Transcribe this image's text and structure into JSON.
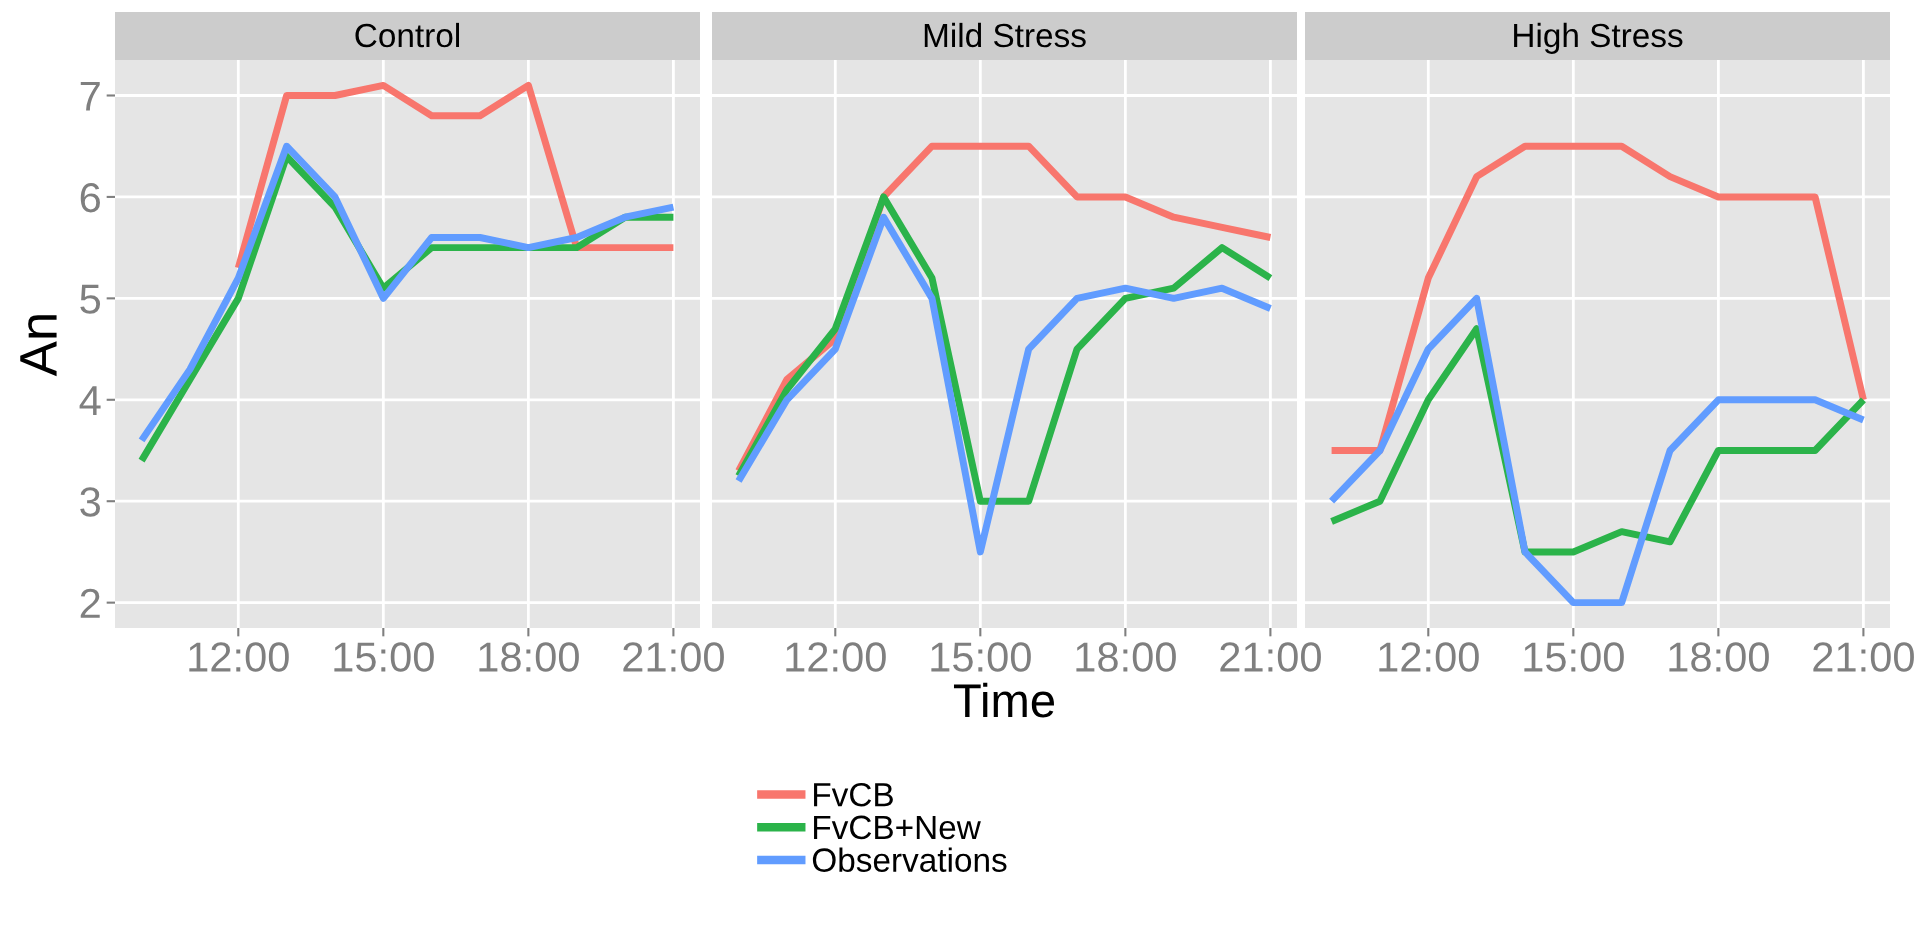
{
  "chart_data": [
    {
      "type": "line",
      "title": "Control",
      "ylabel": "An",
      "legend": "bottom",
      "x": [
        10,
        11,
        12,
        13,
        14,
        15,
        16,
        17,
        18,
        19,
        20,
        21
      ],
      "xlim": [
        9.45,
        21.55
      ],
      "ylim": [
        1.75,
        7.35
      ],
      "xticks": [
        {
          "value": 12,
          "label": "12:00"
        },
        {
          "value": 15,
          "label": "15:00"
        },
        {
          "value": 18,
          "label": "18:00"
        },
        {
          "value": 21,
          "label": "21:00"
        }
      ],
      "yticks": [
        2,
        3,
        4,
        5,
        6,
        7
      ],
      "grid": true,
      "series": [
        {
          "name": "FvCB",
          "color": "#f8766d",
          "values": [
            null,
            null,
            5.3,
            7.0,
            7.0,
            7.1,
            6.8,
            6.8,
            7.1,
            5.5,
            5.5,
            5.5
          ]
        },
        {
          "name": "FvCB+New",
          "color": "#2bb34a",
          "values": [
            3.4,
            4.2,
            5.0,
            6.4,
            5.9,
            5.1,
            5.5,
            5.5,
            5.5,
            5.5,
            5.8,
            5.8
          ]
        },
        {
          "name": "Observations",
          "color": "#619cff",
          "values": [
            3.6,
            4.3,
            5.2,
            6.5,
            6.0,
            5.0,
            5.6,
            5.6,
            5.5,
            5.6,
            5.8,
            5.9
          ]
        }
      ]
    },
    {
      "type": "line",
      "title": "Mild Stress",
      "xlabel": "Time",
      "tick_labels": "x",
      "x": [
        10,
        11,
        12,
        13,
        14,
        15,
        16,
        17,
        18,
        19,
        20,
        21
      ],
      "xlim": [
        9.45,
        21.55
      ],
      "ylim": [
        1.75,
        7.35
      ],
      "xticks": [
        {
          "value": 12,
          "label": "12:00"
        },
        {
          "value": 15,
          "label": "15:00"
        },
        {
          "value": 18,
          "label": "18:00"
        },
        {
          "value": 21,
          "label": "21:00"
        }
      ],
      "yticks": [
        2,
        3,
        4,
        5,
        6,
        7
      ],
      "grid": true,
      "series": [
        {
          "color": "#f8766d",
          "values": [
            3.3,
            4.2,
            4.6,
            6.0,
            6.5,
            6.5,
            6.5,
            6.0,
            6.0,
            5.8,
            5.7,
            5.6
          ]
        },
        {
          "color": "#2bb34a",
          "values": [
            3.25,
            4.1,
            4.7,
            6.0,
            5.2,
            3.0,
            3.0,
            4.5,
            5.0,
            5.1,
            5.5,
            5.2
          ]
        },
        {
          "color": "#619cff",
          "values": [
            3.2,
            4.0,
            4.5,
            5.8,
            5.0,
            2.5,
            4.5,
            5.0,
            5.1,
            5.0,
            5.1,
            4.9
          ]
        }
      ]
    },
    {
      "type": "line",
      "title": "High Stress",
      "tick_labels": "x",
      "x": [
        10,
        11,
        12,
        13,
        14,
        15,
        16,
        17,
        18,
        19,
        20,
        21
      ],
      "xlim": [
        9.45,
        21.55
      ],
      "ylim": [
        1.75,
        7.35
      ],
      "xticks": [
        {
          "value": 12,
          "label": "12:00"
        },
        {
          "value": 15,
          "label": "15:00"
        },
        {
          "value": 18,
          "label": "18:00"
        },
        {
          "value": 21,
          "label": "21:00"
        }
      ],
      "yticks": [
        2,
        3,
        4,
        5,
        6,
        7
      ],
      "grid": true,
      "series": [
        {
          "color": "#f8766d",
          "values": [
            3.5,
            3.5,
            5.2,
            6.2,
            6.5,
            6.5,
            6.5,
            6.2,
            6.0,
            6.0,
            6.0,
            4.0
          ]
        },
        {
          "color": "#2bb34a",
          "values": [
            2.8,
            3.0,
            4.0,
            4.7,
            2.5,
            2.5,
            2.7,
            2.6,
            3.5,
            3.5,
            3.5,
            4.0
          ]
        },
        {
          "color": "#619cff",
          "values": [
            3.0,
            3.5,
            4.5,
            5.0,
            2.5,
            2.0,
            2.0,
            3.5,
            4.0,
            4.0,
            4.0,
            3.8
          ]
        }
      ]
    }
  ]
}
